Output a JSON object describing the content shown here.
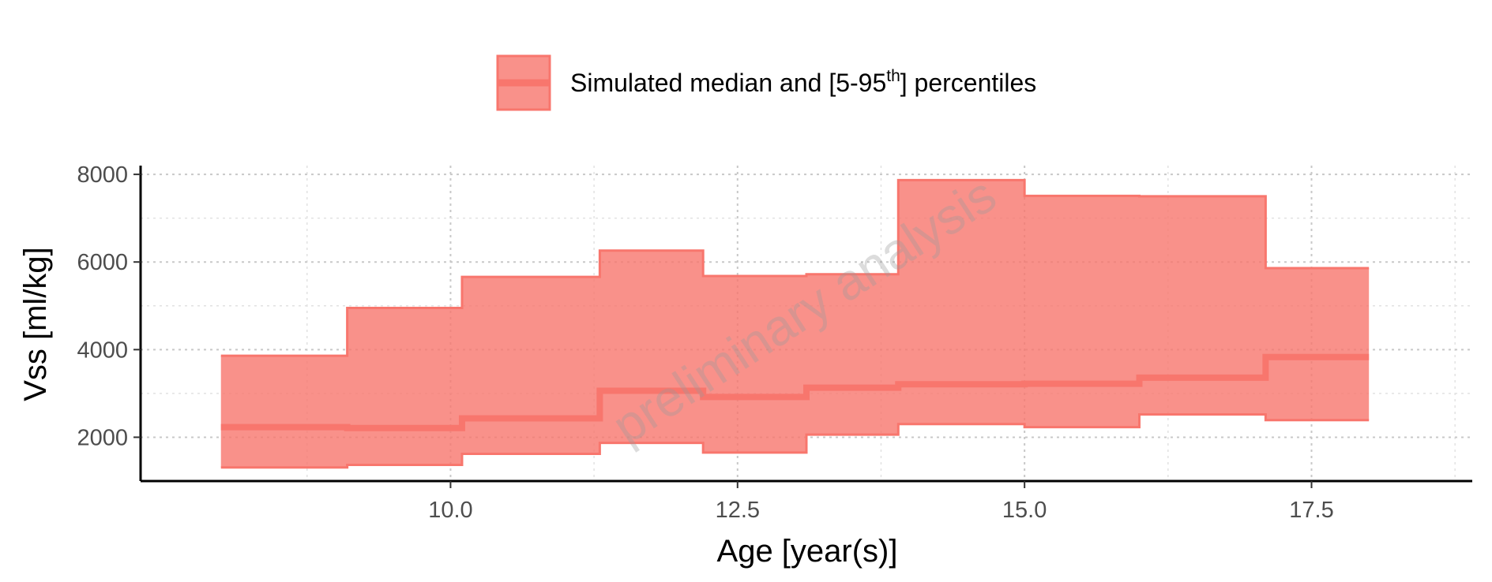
{
  "chart_data": {
    "type": "area",
    "step": true,
    "xlabel": "Age [year(s)]",
    "ylabel": "Vss [ml/kg]",
    "xlim": [
      7.3,
      18.9
    ],
    "ylim": [
      1000,
      8200
    ],
    "xticks": [
      10.0,
      12.5,
      15.0,
      17.5
    ],
    "xtick_labels": [
      "10.0",
      "12.5",
      "15.0",
      "17.5"
    ],
    "yticks": [
      2000,
      4000,
      6000,
      8000
    ],
    "ytick_labels": [
      "2000",
      "4000",
      "6000",
      "8000"
    ],
    "grid": true,
    "legend": {
      "position": "top-center",
      "text": "Simulated median and [5-95",
      "superscript": "th",
      "text_end": "] percentiles"
    },
    "watermark": "preliminary analysis",
    "color": "#f8766d",
    "x_edges": [
      8.0,
      9.1,
      10.1,
      11.3,
      12.2,
      13.1,
      13.9,
      15.0,
      16.0,
      17.1,
      18.0
    ],
    "series": [
      {
        "name": "Simulated median",
        "role": "median",
        "values": [
          2230,
          2210,
          2430,
          3060,
          2920,
          3130,
          3210,
          3220,
          3360,
          3830
        ]
      },
      {
        "name": "5th percentile",
        "role": "lower",
        "values": [
          1310,
          1370,
          1620,
          1870,
          1650,
          2060,
          2300,
          2230,
          2520,
          2390
        ]
      },
      {
        "name": "95th percentile",
        "role": "upper",
        "values": [
          3860,
          4950,
          5660,
          6260,
          5680,
          5720,
          7870,
          7510,
          7500,
          5860
        ]
      }
    ]
  }
}
